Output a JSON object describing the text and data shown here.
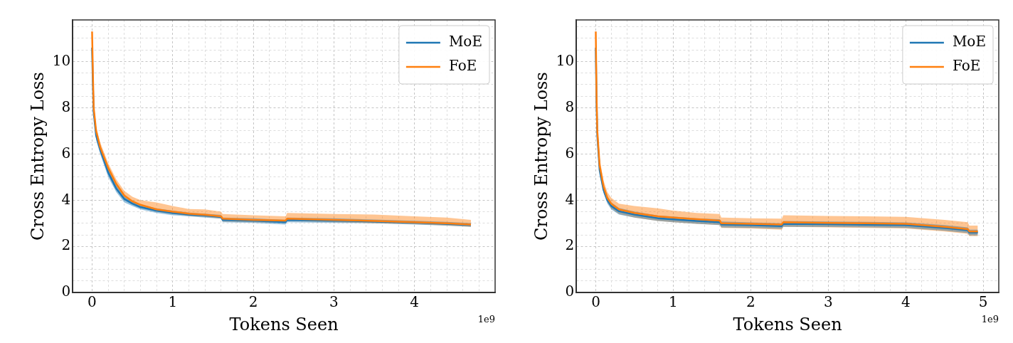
{
  "chart_data": [
    {
      "type": "line",
      "xlabel": "Tokens Seen",
      "ylabel": "Cross Entropy Loss",
      "annotations": [
        "1e9"
      ],
      "grid": true,
      "legend": "top right",
      "xlim": [
        -0.24,
        5.0
      ],
      "ylim": [
        0,
        11.8
      ],
      "xticks": [
        0,
        {
          "value": 0.2,
          "label": null
        },
        {
          "value": 0.4,
          "label": null
        },
        {
          "value": 0.6,
          "label": null
        },
        {
          "value": 0.8,
          "label": null
        },
        1,
        {
          "value": 1.2,
          "label": null
        },
        {
          "value": 1.4,
          "label": null
        },
        {
          "value": 1.6,
          "label": null
        },
        {
          "value": 1.8,
          "label": null
        },
        2,
        {
          "value": 2.2,
          "label": null
        },
        {
          "value": 2.4,
          "label": null
        },
        {
          "value": 2.6,
          "label": null
        },
        {
          "value": 2.8,
          "label": null
        },
        3,
        {
          "value": 3.2,
          "label": null
        },
        {
          "value": 3.4,
          "label": null
        },
        {
          "value": 3.6,
          "label": null
        },
        {
          "value": 3.8,
          "label": null
        },
        4,
        {
          "value": 4.2,
          "label": null
        },
        {
          "value": 4.4,
          "label": null
        },
        {
          "value": 4.6,
          "label": null
        },
        {
          "value": 4.8,
          "label": null
        }
      ],
      "yticks": [
        0,
        {
          "value": 0.5,
          "label": null
        },
        {
          "value": 1,
          "label": null
        },
        {
          "value": 1.5,
          "label": null
        },
        2,
        {
          "value": 2.5,
          "label": null
        },
        {
          "value": 3,
          "label": null
        },
        {
          "value": 3.5,
          "label": null
        },
        4,
        {
          "value": 4.5,
          "label": null
        },
        {
          "value": 5,
          "label": null
        },
        {
          "value": 5.5,
          "label": null
        },
        6,
        {
          "value": 6.5,
          "label": null
        },
        {
          "value": 7,
          "label": null
        },
        {
          "value": 7.5,
          "label": null
        },
        8,
        {
          "value": 8.5,
          "label": null
        },
        {
          "value": 9,
          "label": null
        },
        {
          "value": 9.5,
          "label": null
        },
        10,
        {
          "value": 10.5,
          "label": null
        },
        {
          "value": 11,
          "label": null
        },
        {
          "value": 11.5,
          "label": null
        }
      ],
      "x": [
        0,
        0.01,
        0.02,
        0.05,
        0.1,
        0.2,
        0.3,
        0.4,
        0.5,
        0.6,
        0.8,
        1.0,
        1.2,
        1.4,
        1.6,
        1.62,
        2.0,
        2.4,
        2.42,
        3.0,
        3.5,
        4.0,
        4.4,
        4.7
      ],
      "series": [
        {
          "name": "MoE",
          "color": "#1f77b4",
          "values": [
            10.6,
            9.0,
            7.8,
            6.8,
            6.2,
            5.2,
            4.5,
            4.05,
            3.85,
            3.7,
            3.55,
            3.45,
            3.38,
            3.34,
            3.28,
            3.15,
            3.12,
            3.05,
            3.15,
            3.12,
            3.08,
            3.03,
            2.98,
            2.93
          ],
          "lower": [
            10.5,
            8.8,
            7.6,
            6.6,
            6.0,
            5.0,
            4.35,
            3.9,
            3.75,
            3.6,
            3.45,
            3.35,
            3.3,
            3.25,
            3.2,
            3.05,
            3.02,
            2.95,
            3.05,
            3.02,
            3.0,
            2.95,
            2.9,
            2.85
          ],
          "upper": [
            10.7,
            9.2,
            8.0,
            7.0,
            6.4,
            5.4,
            4.65,
            4.2,
            3.95,
            3.8,
            3.65,
            3.55,
            3.46,
            3.42,
            3.36,
            3.25,
            3.22,
            3.15,
            3.25,
            3.22,
            3.16,
            3.11,
            3.06,
            3.01
          ]
        },
        {
          "name": "FoE",
          "color": "#ff7f0e",
          "values": [
            11.3,
            9.5,
            8.0,
            7.0,
            6.3,
            5.4,
            4.7,
            4.2,
            3.95,
            3.8,
            3.6,
            3.5,
            3.42,
            3.37,
            3.3,
            3.2,
            3.15,
            3.12,
            3.2,
            3.15,
            3.1,
            3.05,
            3.0,
            2.95
          ],
          "lower": [
            11.1,
            9.3,
            7.8,
            6.8,
            6.1,
            5.2,
            4.5,
            4.05,
            3.82,
            3.68,
            3.5,
            3.4,
            3.32,
            3.28,
            3.2,
            3.08,
            3.05,
            3.02,
            3.1,
            3.05,
            3.0,
            2.96,
            2.9,
            2.85
          ],
          "upper": [
            11.4,
            9.7,
            8.2,
            7.2,
            6.5,
            5.6,
            4.9,
            4.4,
            4.15,
            4.0,
            3.9,
            3.75,
            3.62,
            3.6,
            3.5,
            3.4,
            3.35,
            3.3,
            3.45,
            3.4,
            3.38,
            3.3,
            3.25,
            3.15
          ]
        }
      ]
    },
    {
      "type": "line",
      "xlabel": "Tokens Seen",
      "ylabel": "Cross Entropy Loss",
      "annotations": [
        "1e9"
      ],
      "grid": true,
      "legend": "top right",
      "xlim": [
        -0.25,
        5.2
      ],
      "ylim": [
        0,
        11.8
      ],
      "xticks": [
        0,
        {
          "value": 0.2,
          "label": null
        },
        {
          "value": 0.4,
          "label": null
        },
        {
          "value": 0.6,
          "label": null
        },
        {
          "value": 0.8,
          "label": null
        },
        1,
        {
          "value": 1.2,
          "label": null
        },
        {
          "value": 1.4,
          "label": null
        },
        {
          "value": 1.6,
          "label": null
        },
        {
          "value": 1.8,
          "label": null
        },
        2,
        {
          "value": 2.2,
          "label": null
        },
        {
          "value": 2.4,
          "label": null
        },
        {
          "value": 2.6,
          "label": null
        },
        {
          "value": 2.8,
          "label": null
        },
        3,
        {
          "value": 3.2,
          "label": null
        },
        {
          "value": 3.4,
          "label": null
        },
        {
          "value": 3.6,
          "label": null
        },
        {
          "value": 3.8,
          "label": null
        },
        4,
        {
          "value": 4.2,
          "label": null
        },
        {
          "value": 4.4,
          "label": null
        },
        {
          "value": 4.6,
          "label": null
        },
        {
          "value": 4.8,
          "label": null
        },
        5
      ],
      "yticks": [
        0,
        {
          "value": 0.5,
          "label": null
        },
        {
          "value": 1,
          "label": null
        },
        {
          "value": 1.5,
          "label": null
        },
        2,
        {
          "value": 2.5,
          "label": null
        },
        {
          "value": 3,
          "label": null
        },
        {
          "value": 3.5,
          "label": null
        },
        4,
        {
          "value": 4.5,
          "label": null
        },
        {
          "value": 5,
          "label": null
        },
        {
          "value": 5.5,
          "label": null
        },
        6,
        {
          "value": 6.5,
          "label": null
        },
        {
          "value": 7,
          "label": null
        },
        {
          "value": 7.5,
          "label": null
        },
        8,
        {
          "value": 8.5,
          "label": null
        },
        {
          "value": 9,
          "label": null
        },
        {
          "value": 9.5,
          "label": null
        },
        10,
        {
          "value": 10.5,
          "label": null
        },
        {
          "value": 11,
          "label": null
        },
        {
          "value": 11.5,
          "label": null
        }
      ],
      "x": [
        0,
        0.01,
        0.02,
        0.05,
        0.1,
        0.15,
        0.2,
        0.3,
        0.5,
        0.8,
        1.0,
        1.3,
        1.6,
        1.62,
        2.0,
        2.4,
        2.42,
        3.0,
        3.5,
        4.0,
        4.5,
        4.8,
        4.82,
        4.93
      ],
      "series": [
        {
          "name": "MoE",
          "color": "#1f77b4",
          "values": [
            10.6,
            8.2,
            6.8,
            5.3,
            4.45,
            4.0,
            3.75,
            3.52,
            3.38,
            3.22,
            3.17,
            3.1,
            3.05,
            2.95,
            2.92,
            2.88,
            2.98,
            2.96,
            2.94,
            2.92,
            2.8,
            2.7,
            2.6,
            2.6
          ],
          "lower": [
            10.4,
            8.0,
            6.6,
            5.1,
            4.3,
            3.85,
            3.6,
            3.38,
            3.25,
            3.1,
            3.05,
            2.98,
            2.92,
            2.82,
            2.8,
            2.76,
            2.85,
            2.84,
            2.82,
            2.8,
            2.68,
            2.58,
            2.48,
            2.48
          ],
          "upper": [
            10.8,
            8.4,
            7.0,
            5.5,
            4.6,
            4.15,
            3.9,
            3.66,
            3.51,
            3.34,
            3.29,
            3.22,
            3.18,
            3.08,
            3.04,
            3.0,
            3.1,
            3.08,
            3.06,
            3.04,
            2.92,
            2.82,
            2.72,
            2.72
          ]
        },
        {
          "name": "FoE",
          "color": "#ff7f0e",
          "values": [
            11.3,
            8.5,
            7.0,
            5.5,
            4.6,
            4.1,
            3.85,
            3.6,
            3.45,
            3.3,
            3.25,
            3.18,
            3.12,
            3.0,
            2.98,
            2.95,
            3.05,
            3.02,
            3.0,
            2.98,
            2.85,
            2.75,
            2.65,
            2.65
          ],
          "lower": [
            11.1,
            8.2,
            6.7,
            5.2,
            4.35,
            3.9,
            3.65,
            3.4,
            3.25,
            3.1,
            3.05,
            2.98,
            2.92,
            2.8,
            2.78,
            2.72,
            2.85,
            2.82,
            2.8,
            2.78,
            2.65,
            2.55,
            2.45,
            2.45
          ],
          "upper": [
            11.4,
            8.8,
            7.3,
            5.8,
            4.85,
            4.35,
            4.1,
            3.85,
            3.75,
            3.65,
            3.55,
            3.45,
            3.4,
            3.25,
            3.22,
            3.2,
            3.35,
            3.32,
            3.3,
            3.28,
            3.15,
            3.05,
            2.9,
            2.9
          ]
        }
      ]
    }
  ]
}
